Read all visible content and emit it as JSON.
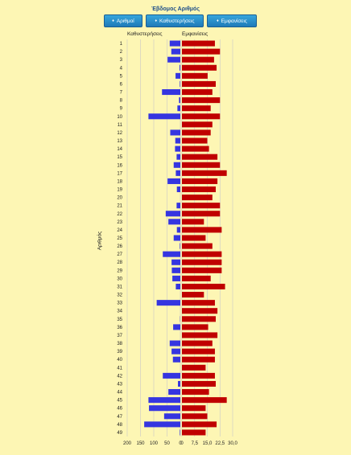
{
  "title": "Έβδομος Αριθμός",
  "buttons": [
    {
      "label": "Αριθμοί"
    },
    {
      "label": "Καθυστερήσεις"
    },
    {
      "label": "Εμφανίσεις"
    }
  ],
  "colors": {
    "delay": "#3535e0",
    "appear": "#c00000",
    "grid": "#c9c9c9"
  },
  "icons": {
    "sort": "updown-arrow-icon"
  },
  "chart_data": {
    "type": "bar",
    "orientation": "horizontal-butterfly",
    "ylabel": "Αριθμός",
    "categories": [
      "1",
      "2",
      "3",
      "4",
      "5",
      "6",
      "7",
      "8",
      "9",
      "10",
      "11",
      "12",
      "13",
      "14",
      "15",
      "16",
      "17",
      "18",
      "19",
      "20",
      "21",
      "22",
      "23",
      "24",
      "25",
      "26",
      "27",
      "28",
      "29",
      "30",
      "31",
      "32",
      "33",
      "34",
      "35",
      "36",
      "37",
      "38",
      "39",
      "40",
      "41",
      "42",
      "43",
      "44",
      "45",
      "46",
      "47",
      "48",
      "49"
    ],
    "series": [
      {
        "name": "Καθυστερήσεις",
        "xlim": [
          200,
          0
        ],
        "tick_labels": [
          "200",
          "150",
          "100",
          "50",
          "0"
        ],
        "values": [
          40,
          34,
          48,
          3,
          18,
          2,
          69,
          5,
          11,
          120,
          0,
          38,
          19,
          20,
          14,
          25,
          17,
          48,
          13,
          0,
          14,
          55,
          45,
          13,
          25,
          2,
          66,
          33,
          32,
          30,
          17,
          0,
          89,
          0,
          1,
          27,
          0,
          40,
          33,
          28,
          0,
          66,
          9,
          45,
          120,
          118,
          61,
          136,
          2
        ]
      },
      {
        "name": "Εμφανίσεις",
        "xlim": [
          0,
          30
        ],
        "tick_labels": [
          "0",
          "7,5",
          "15,0",
          "22,5",
          "30,0"
        ],
        "values": [
          19.5,
          22.5,
          19,
          20.5,
          15.2,
          20,
          18,
          22.5,
          17,
          22.5,
          18,
          17,
          15,
          16,
          21,
          22.5,
          26.5,
          21,
          20,
          18,
          22.5,
          22.5,
          13,
          23.5,
          14,
          18,
          23.5,
          23.5,
          23.5,
          17,
          25.5,
          13,
          19.5,
          21,
          20,
          15.5,
          21,
          18,
          19.5,
          19.5,
          14,
          19.5,
          20,
          16,
          26.5,
          14,
          15,
          20.5,
          14
        ]
      }
    ]
  }
}
